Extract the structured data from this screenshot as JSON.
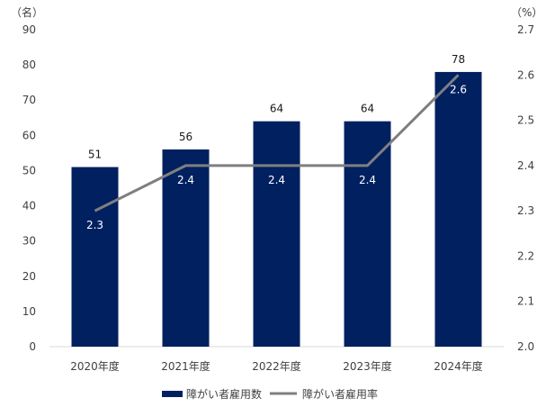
{
  "chart_data": {
    "type": "bar",
    "categories": [
      "2020年度",
      "2021年度",
      "2022年度",
      "2023年度",
      "2024年度"
    ],
    "series": [
      {
        "name": "障がい者雇用数",
        "kind": "bar",
        "axis": "left",
        "color": "#002060",
        "values": [
          51,
          56,
          64,
          64,
          78
        ],
        "value_labels": [
          "51",
          "56",
          "64",
          "64",
          "78"
        ]
      },
      {
        "name": "障がい者雇用率",
        "kind": "line",
        "axis": "right",
        "color": "#7f7f7f",
        "values": [
          2.3,
          2.4,
          2.4,
          2.4,
          2.6
        ],
        "value_labels": [
          "2.3",
          "2.4",
          "2.4",
          "2.4",
          "2.6"
        ]
      }
    ],
    "y_left": {
      "unit": "（名）",
      "min": 0,
      "max": 90,
      "step": 10,
      "ticks": [
        "0",
        "10",
        "20",
        "30",
        "40",
        "50",
        "60",
        "70",
        "80",
        "90"
      ]
    },
    "y_right": {
      "unit": "（%）",
      "min": 2.0,
      "max": 2.7,
      "step": 0.1,
      "ticks": [
        "2.0",
        "2.1",
        "2.2",
        "2.3",
        "2.4",
        "2.5",
        "2.6",
        "2.7"
      ]
    },
    "grid": false,
    "legend_position": "bottom"
  }
}
